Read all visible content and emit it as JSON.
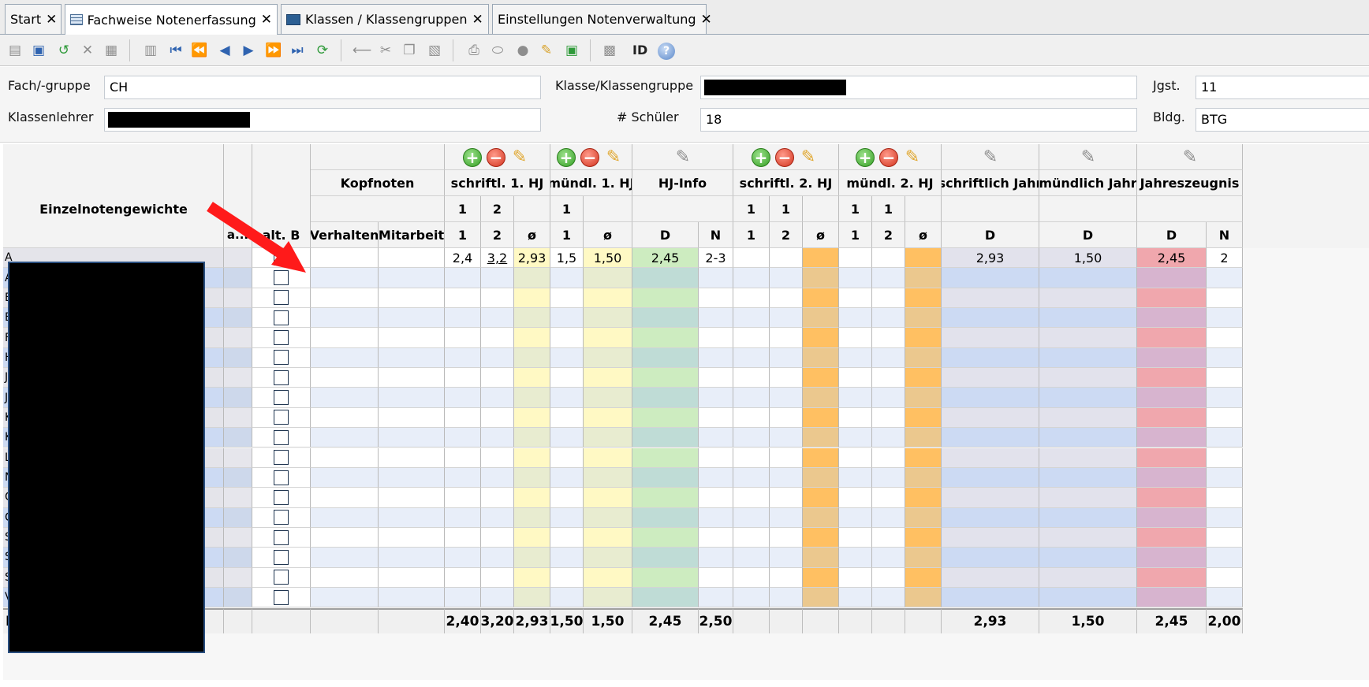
{
  "tabs": [
    {
      "label": "Start",
      "close": "✕",
      "active": false
    },
    {
      "label": "Fachweise Notenerfassung",
      "close": "✕",
      "active": true
    },
    {
      "label": "Klassen / Klassengruppen",
      "close": "✕",
      "active": false
    },
    {
      "label": "Einstellungen Notenverwaltung",
      "close": "✕",
      "active": false
    }
  ],
  "toolbar": {
    "id_label": "ID",
    "help_label": "?"
  },
  "form": {
    "fach_label": "Fach/-gruppe",
    "fach_value": "CH",
    "klasse_label": "Klasse/Klassengruppe",
    "jgst_label": "Jgst.",
    "jgst_value": "11",
    "klassenlehrer_label": "Klassenlehrer",
    "schueler_label": "# Schüler",
    "schueler_value": "18",
    "bldg_label": "Bldg.",
    "bldg_value": "BTG"
  },
  "grid": {
    "einzelnoten_label": "Einzelnotengewichte",
    "col_a": "a...",
    "col_altb": "alt. B",
    "groups": {
      "kopfnoten": "Kopfnoten",
      "schriftl1": "schriftl. 1. HJ",
      "muendl1": "mündl. 1. HJ",
      "hjinfo": "HJ-Info",
      "schriftl2": "schriftl. 2. HJ",
      "muendl2": "mündl. 2. HJ",
      "schriftlichJahr": "schriftlich Jahr",
      "muendlichJahr": "mündlich Jahr",
      "jahreszeugnis": "Jahreszeugnis"
    },
    "weights": {
      "s1a": "1",
      "s1b": "2",
      "m1a": "1",
      "s2a": "1",
      "s2b": "1",
      "m2a": "1",
      "m2b": "1"
    },
    "sub": {
      "verhalten": "Verhalten",
      "mitarbeit": "Mitarbeit",
      "s1a": "1",
      "s1b": "2",
      "s1avg": "ø",
      "m1a": "1",
      "m1avg": "ø",
      "hjD": "D",
      "hjN": "N",
      "s2a": "1",
      "s2b": "2",
      "s2avg": "ø",
      "m2a": "1",
      "m2b": "2",
      "m2avg": "ø",
      "sjD": "D",
      "mjD": "D",
      "jzD": "D",
      "jzN": "N"
    },
    "row1": {
      "checked_mark": "✓",
      "s1a": "2,4",
      "s1b": "3,2",
      "s1avg": "2,93",
      "m1a": "1,5",
      "m1avg": "1,50",
      "hjD": "2,45",
      "hjN": "2-3",
      "sjD": "2,93",
      "mjD": "1,50",
      "jzD": "2,45",
      "jzN": "2"
    },
    "row_initials": [
      "A",
      "A",
      "B",
      "B",
      "F",
      "H",
      "J",
      "J",
      "K",
      "K",
      "L",
      "N",
      "C",
      "C",
      "S",
      "S",
      "S",
      "V"
    ],
    "footer": {
      "label": "Mittelwerte",
      "s1a": "2,40",
      "s1b": "3,20",
      "s1avg": "2,93",
      "m1a": "1,50",
      "m1avg": "1,50",
      "hjD": "2,45",
      "hjN": "2,50",
      "sjD": "2,93",
      "mjD": "1,50",
      "jzD": "2,45",
      "jzN": "2,00"
    }
  },
  "colors": {
    "row_alt": "#ccdaf3",
    "yellow": "#fff9c4",
    "green": "#cdecc0",
    "orange": "#ffc062",
    "lavender": "#e2e2ec",
    "pink": "#f0a7ad",
    "arrow": "#ff1a1a"
  }
}
